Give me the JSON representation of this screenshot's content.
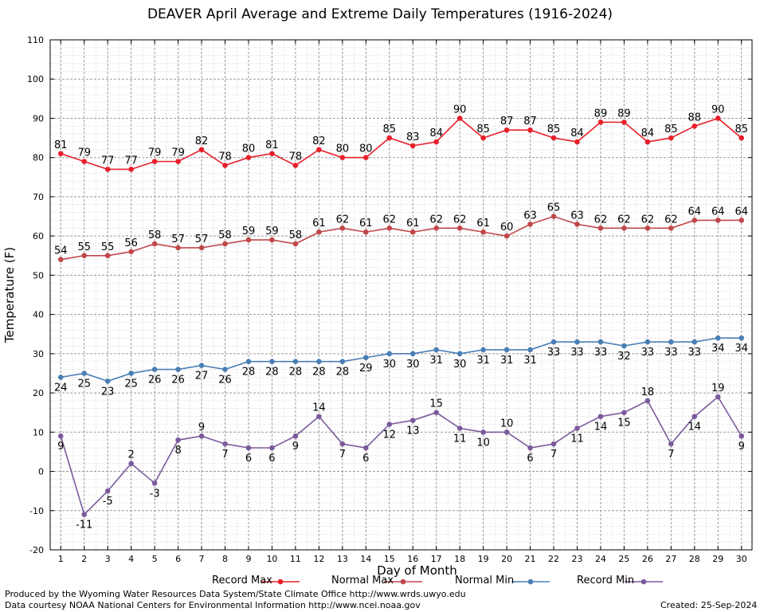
{
  "chart_data": {
    "type": "line",
    "title": "DEAVER April Average and Extreme Daily Temperatures (1916-2024)",
    "xlabel": "Day of Month",
    "ylabel": "Temperature (F)",
    "ylim": [
      -20,
      110
    ],
    "xlim": [
      1,
      30
    ],
    "grid": true,
    "categories": [
      1,
      2,
      3,
      4,
      5,
      6,
      7,
      8,
      9,
      10,
      11,
      12,
      13,
      14,
      15,
      16,
      17,
      18,
      19,
      20,
      21,
      22,
      23,
      24,
      25,
      26,
      27,
      28,
      29,
      30
    ],
    "series": [
      {
        "name": "Record Max",
        "color": "#e8202a",
        "values": [
          81,
          79,
          77,
          77,
          79,
          79,
          82,
          78,
          80,
          81,
          78,
          82,
          80,
          80,
          85,
          83,
          84,
          90,
          85,
          87,
          87,
          85,
          84,
          89,
          89,
          84,
          85,
          88,
          90,
          85
        ]
      },
      {
        "name": "Normal Max",
        "color": "#c0474a",
        "values": [
          54,
          55,
          55,
          56,
          58,
          57,
          57,
          58,
          59,
          59,
          58,
          61,
          62,
          61,
          62,
          61,
          62,
          62,
          61,
          60,
          63,
          65,
          63,
          62,
          62,
          62,
          62,
          64,
          64,
          64
        ]
      },
      {
        "name": "Normal Min",
        "color": "#4a7fb5",
        "values": [
          24,
          25,
          23,
          25,
          26,
          26,
          27,
          26,
          28,
          28,
          28,
          28,
          28,
          29,
          30,
          30,
          31,
          30,
          31,
          31,
          31,
          33,
          33,
          33,
          32,
          33,
          33,
          33,
          34,
          34
        ]
      },
      {
        "name": "Record Min",
        "color": "#7b5a9c",
        "values": [
          9,
          -11,
          -5,
          2,
          -3,
          8,
          9,
          7,
          6,
          6,
          9,
          14,
          7,
          6,
          12,
          13,
          15,
          11,
          10,
          10,
          6,
          7,
          11,
          14,
          15,
          18,
          7,
          14,
          19,
          9
        ]
      }
    ],
    "legend_position": "bottom"
  },
  "footer": {
    "produced_by": "Produced by the Wyoming Water Resources Data System/State Climate Office http://www.wrds.uwyo.edu",
    "courtesy": "Data courtesy NOAA National Centers for Environmental Information http://www.ncei.noaa.gov",
    "created": "Created: 25-Sep-2024"
  }
}
